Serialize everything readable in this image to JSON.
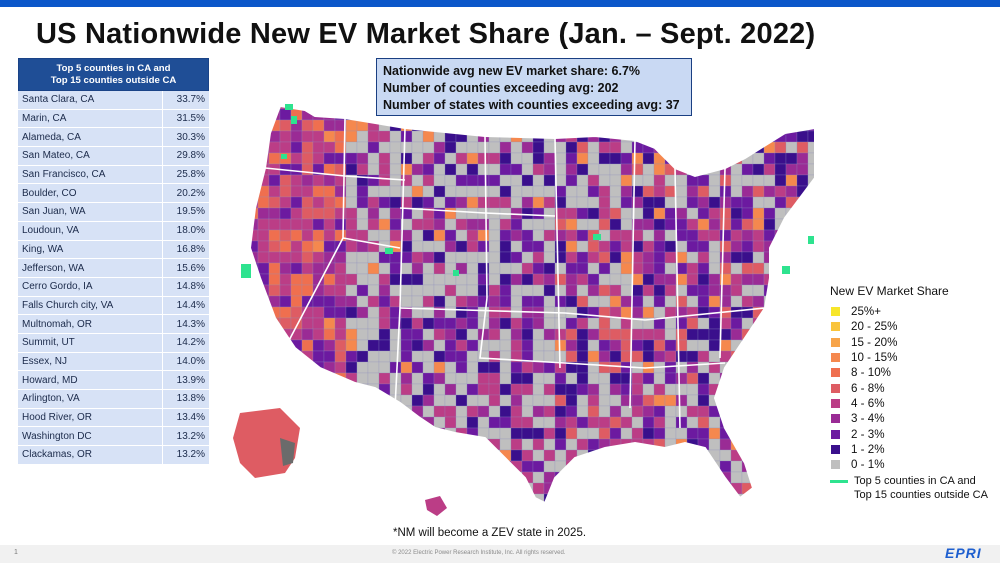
{
  "title": "US Nationwide New EV Market Share (Jan. – Sept. 2022)",
  "top_counties": {
    "header": [
      "Top 5 counties in CA and",
      "Top 15 counties outside CA"
    ],
    "rows": [
      {
        "name": "Santa Clara, CA",
        "value": "33.7%"
      },
      {
        "name": "Marin, CA",
        "value": "31.5%"
      },
      {
        "name": "Alameda, CA",
        "value": "30.3%"
      },
      {
        "name": "San Mateo, CA",
        "value": "29.8%"
      },
      {
        "name": "San Francisco, CA",
        "value": "25.8%"
      },
      {
        "name": "Boulder, CO",
        "value": "20.2%"
      },
      {
        "name": "San Juan, WA",
        "value": "19.5%"
      },
      {
        "name": "Loudoun, VA",
        "value": "18.0%"
      },
      {
        "name": "King, WA",
        "value": "16.8%"
      },
      {
        "name": "Jefferson, WA",
        "value": "15.6%"
      },
      {
        "name": "Cerro Gordo, IA",
        "value": "14.8%"
      },
      {
        "name": "Falls Church city, VA",
        "value": "14.4%"
      },
      {
        "name": "Multnomah, OR",
        "value": "14.3%"
      },
      {
        "name": "Summit, UT",
        "value": "14.2%"
      },
      {
        "name": "Essex, NJ",
        "value": "14.0%"
      },
      {
        "name": "Howard, MD",
        "value": "13.9%"
      },
      {
        "name": "Arlington, VA",
        "value": "13.8%"
      },
      {
        "name": "Hood River, OR",
        "value": "13.4%"
      },
      {
        "name": "Washington DC",
        "value": "13.2%"
      },
      {
        "name": "Clackamas, OR",
        "value": "13.2%"
      }
    ]
  },
  "stats": {
    "line1": "Nationwide avg new EV market share: 6.7%",
    "line2": "Number of counties exceeding avg: 202",
    "line3": "Number of states with counties exceeding avg: 37"
  },
  "legend": {
    "title": "New EV Market Share",
    "items": [
      {
        "label": "25%+",
        "color": "#f7e62a"
      },
      {
        "label": "20 - 25%",
        "color": "#f9c43c"
      },
      {
        "label": "15 - 20%",
        "color": "#f7a449"
      },
      {
        "label": "10 - 15%",
        "color": "#f5884e"
      },
      {
        "label": "8 - 10%",
        "color": "#ef6f4f"
      },
      {
        "label": "6 - 8%",
        "color": "#de5c63"
      },
      {
        "label": "4 - 6%",
        "color": "#bb3d86"
      },
      {
        "label": "3 - 4%",
        "color": "#9a2b95"
      },
      {
        "label": "2 - 3%",
        "color": "#6c1aa0"
      },
      {
        "label": "1 - 2%",
        "color": "#3a0f8c"
      },
      {
        "label": "0 - 1%",
        "color": "#bfbfbf"
      }
    ],
    "top_line_label_1": "Top 5 counties in CA and",
    "top_line_label_2": "Top 15 counties outside CA",
    "top_line_color": "#2ee38f"
  },
  "footnote": "*NM will become a ZEV state in 2025.",
  "footer": {
    "page_number": "1",
    "copyright": "© 2022 Electric Power Research Institute, Inc. All rights reserved.",
    "logo": "EPRI"
  }
}
